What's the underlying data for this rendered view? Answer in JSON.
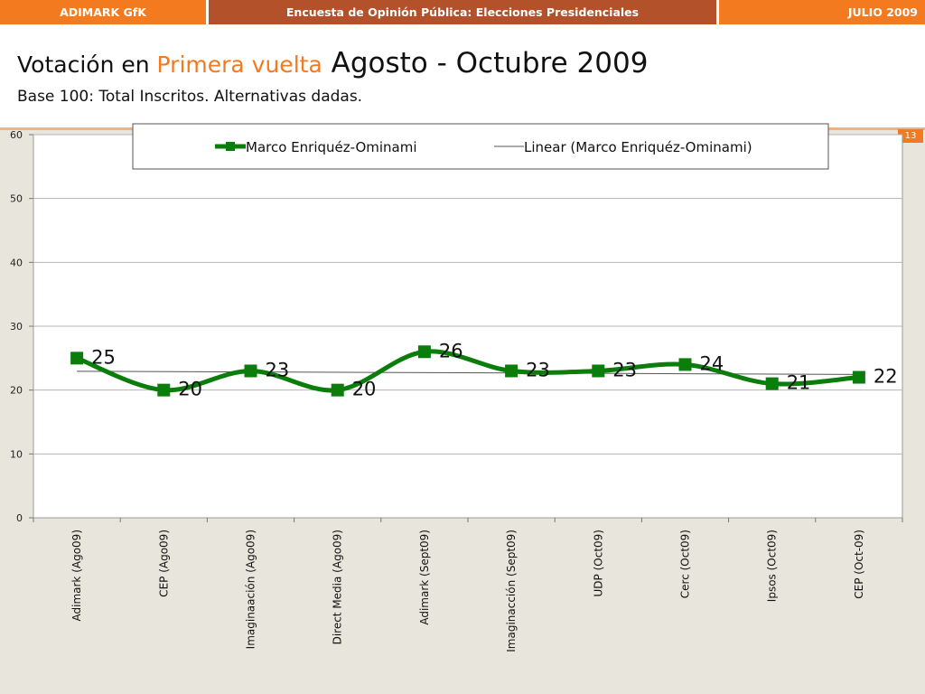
{
  "header": {
    "left_label": "ADIMARK GfK",
    "center_title": "Encuesta de Opinión Pública: Elecciones Presidenciales",
    "right_label": "JULIO 2009"
  },
  "title": {
    "part1": "Votación en ",
    "part2": "Primera vuelta",
    "part3": " Agosto - Octubre 2009"
  },
  "subtitle": "Base 100: Total Inscritos. Alternativas dadas.",
  "page_number": "13",
  "colors": {
    "accent_orange": "#f47a1f",
    "header_brown": "#b3512a",
    "series_green": "#0a7d0a",
    "trend_gray": "#555555"
  },
  "chart_data": {
    "type": "line",
    "title": "",
    "xlabel": "",
    "ylabel": "",
    "ylim": [
      0,
      60
    ],
    "yticks": [
      0,
      10,
      20,
      30,
      40,
      50,
      60
    ],
    "grid": true,
    "legend_position": "top",
    "categories": [
      "Adimark (Ago09)",
      "CEP (Ago09)",
      "Imaginaación (Ago09)",
      "Direct Media (Ago09)",
      "Adimark (Sept09)",
      "Imaginacción (Sept09)",
      "UDP (Oct09)",
      "Cerc (Oct09)",
      "Ipsos (Oct09)",
      "CEP (Oct-09)"
    ],
    "series": [
      {
        "name": "Marco Enriquéz-Ominami",
        "values": [
          25,
          20,
          23,
          20,
          26,
          23,
          23,
          24,
          21,
          22
        ],
        "data_labels": [
          "25",
          "20",
          "23",
          "20",
          "26",
          "23",
          "23",
          "24",
          "21",
          "22"
        ]
      }
    ],
    "trendline": {
      "name": "Linear (Marco Enriquéz-Ominami)",
      "type": "linear"
    }
  }
}
